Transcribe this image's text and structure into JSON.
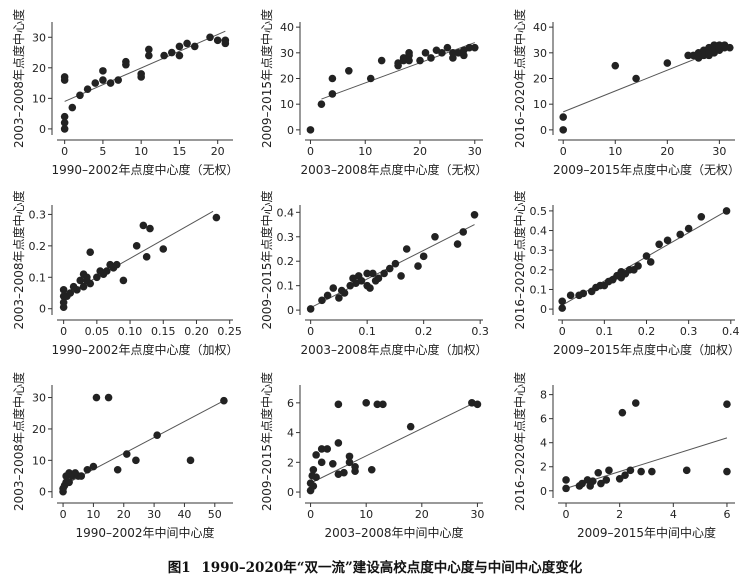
{
  "caption": {
    "label": "图1",
    "text": "1990–2020年“双一流”建设高校点度中心度与中间中心度变化"
  },
  "chart_data": [
    {
      "type": "scatter",
      "xlabel": "1990–2002年点度中心度（无权）",
      "ylabel": "2003–2008年点度中心度",
      "xlim": [
        -1,
        22
      ],
      "ylim": [
        -2,
        35
      ],
      "xticks": [
        0,
        5,
        10,
        15,
        20
      ],
      "yticks": [
        0,
        10,
        20,
        30
      ],
      "xtick_labels": [
        "0",
        "5",
        "10",
        "15",
        "20"
      ],
      "ytick_labels": [
        "0",
        "10",
        "20",
        "30"
      ],
      "trend": [
        [
          0,
          9
        ],
        [
          21,
          32
        ]
      ],
      "points": [
        [
          0,
          0
        ],
        [
          0,
          2
        ],
        [
          0,
          4
        ],
        [
          0,
          16
        ],
        [
          0,
          17
        ],
        [
          1,
          7
        ],
        [
          2,
          11
        ],
        [
          3,
          13
        ],
        [
          4,
          15
        ],
        [
          5,
          16
        ],
        [
          5,
          19
        ],
        [
          6,
          15
        ],
        [
          7,
          16
        ],
        [
          8,
          21
        ],
        [
          8,
          22
        ],
        [
          10,
          17
        ],
        [
          10,
          18
        ],
        [
          11,
          24
        ],
        [
          11,
          26
        ],
        [
          13,
          24
        ],
        [
          14,
          25
        ],
        [
          15,
          24
        ],
        [
          15,
          27
        ],
        [
          16,
          28
        ],
        [
          17,
          27
        ],
        [
          19,
          30
        ],
        [
          20,
          29
        ],
        [
          21,
          28
        ],
        [
          21,
          29
        ]
      ]
    },
    {
      "type": "scatter",
      "xlabel": "2003–2008年点度中心度（无权）",
      "ylabel": "2009–2015年点度中心度",
      "xlim": [
        -1,
        31.5
      ],
      "ylim": [
        -2,
        42
      ],
      "xticks": [
        0,
        10,
        20,
        30
      ],
      "yticks": [
        0,
        10,
        20,
        30,
        40
      ],
      "xtick_labels": [
        "0",
        "10",
        "20",
        "30"
      ],
      "ytick_labels": [
        "0",
        "10",
        "20",
        "30",
        "40"
      ],
      "trend": [
        [
          2,
          12
        ],
        [
          30,
          34
        ]
      ],
      "points": [
        [
          0,
          0
        ],
        [
          2,
          10
        ],
        [
          4,
          14
        ],
        [
          4,
          20
        ],
        [
          7,
          23
        ],
        [
          11,
          20
        ],
        [
          13,
          27
        ],
        [
          16,
          25
        ],
        [
          16,
          26
        ],
        [
          17,
          27
        ],
        [
          17,
          28
        ],
        [
          18,
          27
        ],
        [
          18,
          29
        ],
        [
          18,
          30
        ],
        [
          20,
          27
        ],
        [
          21,
          30
        ],
        [
          22,
          28
        ],
        [
          23,
          31
        ],
        [
          24,
          30
        ],
        [
          25,
          32
        ],
        [
          26,
          28
        ],
        [
          26,
          30
        ],
        [
          27,
          30
        ],
        [
          28,
          29
        ],
        [
          28,
          31
        ],
        [
          29,
          32
        ],
        [
          30,
          32
        ]
      ]
    },
    {
      "type": "scatter",
      "xlabel": "2009–2015年点度中心度（无权）",
      "ylabel": "2016–2020年点度中心度",
      "xlim": [
        -1,
        33
      ],
      "ylim": [
        -2,
        42
      ],
      "xticks": [
        0,
        10,
        20,
        30
      ],
      "yticks": [
        0,
        10,
        20,
        30,
        40
      ],
      "xtick_labels": [
        "0",
        "10",
        "20",
        "30"
      ],
      "ytick_labels": [
        "0",
        "10",
        "20",
        "30",
        "40"
      ],
      "trend": [
        [
          0,
          7
        ],
        [
          32,
          33
        ]
      ],
      "points": [
        [
          0,
          0
        ],
        [
          0,
          5
        ],
        [
          10,
          25
        ],
        [
          14,
          20
        ],
        [
          20,
          26
        ],
        [
          24,
          29
        ],
        [
          25,
          29
        ],
        [
          26,
          28
        ],
        [
          26,
          30
        ],
        [
          27,
          29
        ],
        [
          27,
          30
        ],
        [
          27,
          31
        ],
        [
          28,
          29
        ],
        [
          28,
          30
        ],
        [
          28,
          31
        ],
        [
          28,
          32
        ],
        [
          29,
          30
        ],
        [
          29,
          32
        ],
        [
          29,
          33
        ],
        [
          30,
          31
        ],
        [
          30,
          32
        ],
        [
          30,
          33
        ],
        [
          31,
          32
        ],
        [
          31,
          33
        ],
        [
          32,
          32
        ]
      ]
    },
    {
      "type": "scatter",
      "xlabel": "1990–2002年点度中心度（加权）",
      "ylabel": "2003–2008年点度中心度",
      "xlim": [
        -0.01,
        0.255
      ],
      "ylim": [
        -0.02,
        0.33
      ],
      "xticks": [
        0,
        0.05,
        0.1,
        0.15,
        0.2,
        0.25
      ],
      "yticks": [
        0,
        0.1,
        0.2,
        0.3
      ],
      "xtick_labels": [
        "0",
        "0.05",
        "0.10",
        "0.15",
        "0.20",
        "0.25"
      ],
      "ytick_labels": [
        "0",
        "0.1",
        "0.2",
        "0.3"
      ],
      "trend": [
        [
          0,
          0.04
        ],
        [
          0.225,
          0.31
        ]
      ],
      "points": [
        [
          0,
          0.005
        ],
        [
          0,
          0.02
        ],
        [
          0,
          0.04
        ],
        [
          0,
          0.06
        ],
        [
          0.005,
          0.04
        ],
        [
          0.01,
          0.05
        ],
        [
          0.015,
          0.07
        ],
        [
          0.02,
          0.06
        ],
        [
          0.025,
          0.09
        ],
        [
          0.03,
          0.07
        ],
        [
          0.03,
          0.11
        ],
        [
          0.035,
          0.09
        ],
        [
          0.035,
          0.1
        ],
        [
          0.04,
          0.08
        ],
        [
          0.04,
          0.18
        ],
        [
          0.05,
          0.1
        ],
        [
          0.055,
          0.12
        ],
        [
          0.06,
          0.11
        ],
        [
          0.065,
          0.12
        ],
        [
          0.07,
          0.14
        ],
        [
          0.075,
          0.13
        ],
        [
          0.08,
          0.14
        ],
        [
          0.09,
          0.09
        ],
        [
          0.11,
          0.2
        ],
        [
          0.12,
          0.265
        ],
        [
          0.125,
          0.165
        ],
        [
          0.13,
          0.255
        ],
        [
          0.15,
          0.19
        ],
        [
          0.23,
          0.29
        ]
      ]
    },
    {
      "type": "scatter",
      "xlabel": "2003–2008年点度中心度（加权）",
      "ylabel": "2009–2015年点度中心度",
      "xlim": [
        -0.01,
        0.305
      ],
      "ylim": [
        -0.02,
        0.43
      ],
      "xticks": [
        0,
        0.1,
        0.2,
        0.3
      ],
      "yticks": [
        0,
        0.1,
        0.2,
        0.3,
        0.4
      ],
      "xtick_labels": [
        "0",
        "0.1",
        "0.2",
        "0.3"
      ],
      "ytick_labels": [
        "0",
        "0.1",
        "0.2",
        "0.3",
        "0.4"
      ],
      "trend": [
        [
          0,
          0.01
        ],
        [
          0.29,
          0.35
        ]
      ],
      "points": [
        [
          0,
          0.005
        ],
        [
          0.02,
          0.04
        ],
        [
          0.03,
          0.06
        ],
        [
          0.04,
          0.09
        ],
        [
          0.05,
          0.05
        ],
        [
          0.055,
          0.08
        ],
        [
          0.06,
          0.07
        ],
        [
          0.07,
          0.1
        ],
        [
          0.075,
          0.13
        ],
        [
          0.08,
          0.11
        ],
        [
          0.085,
          0.14
        ],
        [
          0.09,
          0.12
        ],
        [
          0.1,
          0.1
        ],
        [
          0.1,
          0.15
        ],
        [
          0.105,
          0.09
        ],
        [
          0.11,
          0.15
        ],
        [
          0.115,
          0.12
        ],
        [
          0.12,
          0.13
        ],
        [
          0.13,
          0.15
        ],
        [
          0.14,
          0.17
        ],
        [
          0.15,
          0.19
        ],
        [
          0.16,
          0.14
        ],
        [
          0.17,
          0.25
        ],
        [
          0.19,
          0.18
        ],
        [
          0.2,
          0.22
        ],
        [
          0.22,
          0.3
        ],
        [
          0.26,
          0.27
        ],
        [
          0.27,
          0.32
        ],
        [
          0.29,
          0.39
        ]
      ]
    },
    {
      "type": "scatter",
      "xlabel": "2009–2015年点度中心度（加权）",
      "ylabel": "2016–2020年点度中心度",
      "xlim": [
        -0.01,
        0.41
      ],
      "ylim": [
        -0.03,
        0.53
      ],
      "xticks": [
        0,
        0.1,
        0.2,
        0.3,
        0.4
      ],
      "yticks": [
        0,
        0.1,
        0.2,
        0.3,
        0.4,
        0.5
      ],
      "xtick_labels": [
        "0",
        "0.1",
        "0.2",
        "0.3",
        "0.4"
      ],
      "ytick_labels": [
        "0",
        "0.1",
        "0.2",
        "0.3",
        "0.4",
        "0.5"
      ],
      "trend": [
        [
          0,
          0.02
        ],
        [
          0.39,
          0.5
        ]
      ],
      "points": [
        [
          0,
          0.005
        ],
        [
          0,
          0.04
        ],
        [
          0.02,
          0.07
        ],
        [
          0.04,
          0.07
        ],
        [
          0.05,
          0.08
        ],
        [
          0.07,
          0.09
        ],
        [
          0.08,
          0.11
        ],
        [
          0.09,
          0.12
        ],
        [
          0.1,
          0.12
        ],
        [
          0.11,
          0.14
        ],
        [
          0.12,
          0.15
        ],
        [
          0.13,
          0.17
        ],
        [
          0.14,
          0.16
        ],
        [
          0.14,
          0.19
        ],
        [
          0.15,
          0.18
        ],
        [
          0.16,
          0.2
        ],
        [
          0.17,
          0.2
        ],
        [
          0.18,
          0.22
        ],
        [
          0.2,
          0.27
        ],
        [
          0.21,
          0.24
        ],
        [
          0.23,
          0.33
        ],
        [
          0.25,
          0.35
        ],
        [
          0.28,
          0.38
        ],
        [
          0.3,
          0.41
        ],
        [
          0.33,
          0.47
        ],
        [
          0.39,
          0.5
        ]
      ]
    },
    {
      "type": "scatter",
      "xlabel": "1990–2002年中间中心度",
      "ylabel": "2003–2008年点度中心度",
      "xlim": [
        -2,
        56
      ],
      "ylim": [
        -2,
        34
      ],
      "xticks": [
        0,
        10,
        20,
        30,
        40,
        50
      ],
      "yticks": [
        0,
        10,
        20,
        30
      ],
      "xtick_labels": [
        "0",
        "10",
        "20",
        "30",
        "40",
        "50"
      ],
      "ytick_labels": [
        "0",
        "10",
        "20",
        "30"
      ],
      "trend": [
        [
          0,
          2
        ],
        [
          53,
          29
        ]
      ],
      "points": [
        [
          0,
          0
        ],
        [
          0,
          1
        ],
        [
          0.5,
          2
        ],
        [
          1,
          3
        ],
        [
          1,
          5
        ],
        [
          2,
          3
        ],
        [
          2,
          6
        ],
        [
          3,
          5
        ],
        [
          4,
          6
        ],
        [
          5,
          5
        ],
        [
          6,
          5
        ],
        [
          8,
          7
        ],
        [
          10,
          8
        ],
        [
          11,
          30
        ],
        [
          15,
          30
        ],
        [
          18,
          7
        ],
        [
          21,
          12
        ],
        [
          24,
          10
        ],
        [
          31,
          18
        ],
        [
          42,
          10
        ],
        [
          53,
          29
        ]
      ]
    },
    {
      "type": "scatter",
      "xlabel": "2003–2008年中间中心度",
      "ylabel": "2009–2015年点度中心度",
      "xlim": [
        -1,
        31
      ],
      "ylim": [
        -0.4,
        7.2
      ],
      "xticks": [
        0,
        10,
        20,
        30
      ],
      "yticks": [
        0,
        2,
        4,
        6
      ],
      "xtick_labels": [
        "0",
        "10",
        "20",
        "30"
      ],
      "ytick_labels": [
        "0",
        "2",
        "4",
        "6"
      ],
      "trend": [
        [
          0,
          0.6
        ],
        [
          30,
          6.1
        ]
      ],
      "points": [
        [
          0,
          0.1
        ],
        [
          0,
          0.6
        ],
        [
          0.3,
          1.1
        ],
        [
          0.5,
          0.4
        ],
        [
          0.5,
          1.5
        ],
        [
          1,
          2.5
        ],
        [
          1,
          1.0
        ],
        [
          2,
          2.0
        ],
        [
          2,
          2.9
        ],
        [
          3,
          2.9
        ],
        [
          4,
          1.9
        ],
        [
          5,
          1.2
        ],
        [
          5,
          3.3
        ],
        [
          5,
          5.9
        ],
        [
          6,
          1.3
        ],
        [
          7,
          2.0
        ],
        [
          7,
          2.4
        ],
        [
          8,
          1.4
        ],
        [
          8,
          1.7
        ],
        [
          10,
          6.0
        ],
        [
          11,
          1.5
        ],
        [
          12,
          5.9
        ],
        [
          13,
          5.9
        ],
        [
          18,
          4.4
        ],
        [
          29,
          6.0
        ],
        [
          30,
          5.9
        ]
      ]
    },
    {
      "type": "scatter",
      "xlabel": "2009–2015年中间中心度",
      "ylabel": "2016–2020年点度中心度",
      "xlim": [
        -0.3,
        6.3
      ],
      "ylim": [
        -0.6,
        8.8
      ],
      "xticks": [
        0,
        2,
        4,
        6
      ],
      "yticks": [
        0,
        2,
        4,
        6,
        8
      ],
      "xtick_labels": [
        "0",
        "2",
        "4",
        "6"
      ],
      "ytick_labels": [
        "0",
        "2",
        "4",
        "6",
        "8"
      ],
      "trend": [
        [
          0,
          0.2
        ],
        [
          6,
          4.4
        ]
      ],
      "points": [
        [
          0,
          0.2
        ],
        [
          0,
          0.9
        ],
        [
          0.5,
          0.4
        ],
        [
          0.6,
          0.6
        ],
        [
          0.8,
          0.9
        ],
        [
          0.9,
          0.4
        ],
        [
          1,
          0.8
        ],
        [
          1.2,
          1.5
        ],
        [
          1.3,
          0.6
        ],
        [
          1.5,
          0.9
        ],
        [
          1.6,
          1.7
        ],
        [
          2,
          1.0
        ],
        [
          2.2,
          1.3
        ],
        [
          2.1,
          6.5
        ],
        [
          2.4,
          1.7
        ],
        [
          2.6,
          7.3
        ],
        [
          2.8,
          1.6
        ],
        [
          3.2,
          1.6
        ],
        [
          4.5,
          1.7
        ],
        [
          6,
          1.6
        ],
        [
          6,
          7.2
        ]
      ]
    }
  ]
}
